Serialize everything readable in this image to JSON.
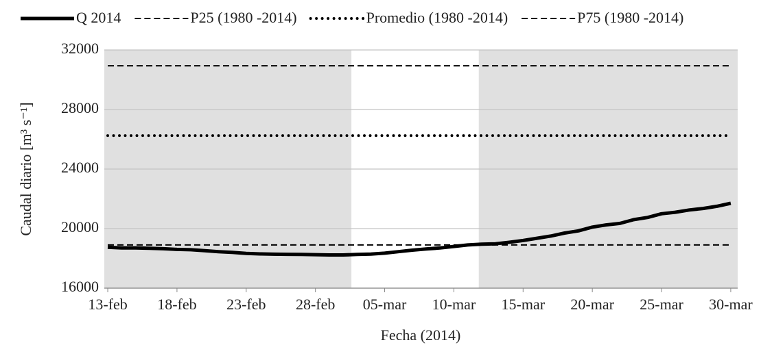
{
  "chart_data": {
    "type": "line",
    "ylabel": "Caudal diario [m³ s⁻¹]",
    "xlabel": "Fecha (2014)",
    "categories": [
      "13-feb",
      null,
      null,
      null,
      null,
      "18-feb",
      null,
      null,
      null,
      null,
      "23-feb",
      null,
      null,
      null,
      null,
      "28-feb",
      null,
      null,
      null,
      null,
      "05-mar",
      null,
      null,
      null,
      null,
      "10-mar",
      null,
      null,
      null,
      null,
      "15-mar",
      null,
      null,
      null,
      null,
      "20-mar",
      null,
      null,
      null,
      null,
      "25-mar",
      null,
      null,
      null,
      null,
      "30-mar"
    ],
    "xlim": [
      -0.25,
      45.5
    ],
    "ylim": [
      16000,
      32000
    ],
    "yticks": [
      16000,
      20000,
      24000,
      28000,
      32000
    ],
    "grid": true,
    "shaded": [
      [
        -0.25,
        17.6
      ],
      [
        26.8,
        45.5
      ]
    ],
    "shade_color": "#e0e0e0",
    "series": [
      {
        "name": "Q 2014",
        "color": "#000000",
        "style": "solid",
        "values": [
          18750,
          18700,
          18700,
          18680,
          18650,
          18600,
          18580,
          18520,
          18450,
          18400,
          18330,
          18300,
          18280,
          18270,
          18260,
          18250,
          18230,
          18230,
          18260,
          18290,
          18350,
          18450,
          18550,
          18630,
          18700,
          18800,
          18900,
          18950,
          18980,
          19080,
          19200,
          19350,
          19500,
          19700,
          19850,
          20100,
          20250,
          20350,
          20600,
          20750,
          21000,
          21100,
          21250,
          21350,
          21500,
          21700
        ]
      },
      {
        "name": "P25 (1980 -2014)",
        "color": "#000000",
        "style": "dashed",
        "values": [
          18900,
          18900,
          18900,
          18900,
          18900,
          18900,
          18900,
          18900,
          18900,
          18900,
          18900,
          18900,
          18900,
          18900,
          18900,
          18900,
          18900,
          18900,
          18900,
          18900,
          18900,
          18900,
          18900,
          18900,
          18900,
          18900,
          18900,
          18900,
          18900,
          18900,
          18900,
          18900,
          18900,
          18900,
          18900,
          18900,
          18900,
          18900,
          18900,
          18900,
          18900,
          18900,
          18900,
          18900,
          18900,
          18900
        ]
      },
      {
        "name": "Promedio (1980 -2014)",
        "color": "#000000",
        "style": "dotted",
        "values": [
          26250,
          26250,
          26250,
          26250,
          26250,
          26250,
          26250,
          26250,
          26250,
          26250,
          26250,
          26250,
          26250,
          26250,
          26250,
          26250,
          26250,
          26250,
          26250,
          26250,
          26250,
          26250,
          26250,
          26250,
          26250,
          26250,
          26250,
          26250,
          26250,
          26250,
          26250,
          26250,
          26250,
          26250,
          26250,
          26250,
          26250,
          26250,
          26250,
          26250,
          26250,
          26250,
          26250,
          26250,
          26250,
          26250
        ]
      },
      {
        "name": "P75 (1980 -2014)",
        "color": "#000000",
        "style": "dashed",
        "values": [
          30940,
          30940,
          30940,
          30940,
          30940,
          30940,
          30940,
          30940,
          30940,
          30940,
          30940,
          30940,
          30940,
          30940,
          30940,
          30940,
          30940,
          30940,
          30940,
          30940,
          30940,
          30940,
          30940,
          30940,
          30940,
          30940,
          30940,
          30940,
          30940,
          30940,
          30940,
          30940,
          30940,
          30940,
          30940,
          30940,
          30940,
          30940,
          30940,
          30940,
          30940,
          30940,
          30940,
          30940,
          30940,
          30940
        ]
      }
    ]
  }
}
